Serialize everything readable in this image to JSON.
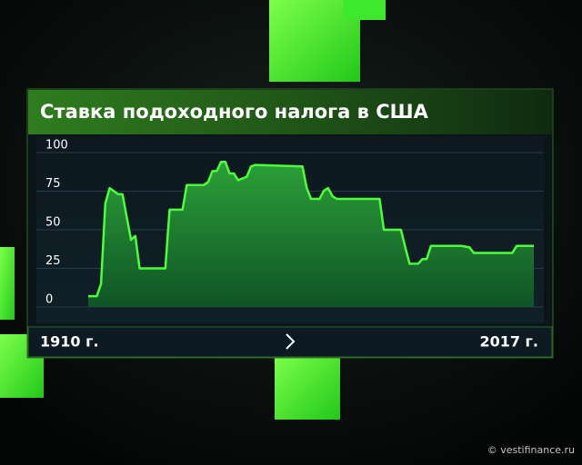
{
  "chart_data": {
    "type": "area",
    "title": "Ставка подоходного налога в США",
    "x": [
      1913,
      1915,
      1916,
      1917,
      1918,
      1920,
      1921,
      1922,
      1923,
      1924,
      1925,
      1931,
      1932,
      1935,
      1936,
      1940,
      1941,
      1942,
      1943,
      1944,
      1945,
      1946,
      1947,
      1948,
      1950,
      1951,
      1952,
      1963,
      1964,
      1965,
      1967,
      1968,
      1969,
      1970,
      1971,
      1981,
      1982,
      1986,
      1987,
      1988,
      1990,
      1991,
      1992,
      1993,
      2000,
      2001,
      2002,
      2003,
      2012,
      2013,
      2017
    ],
    "values": [
      7,
      7,
      15,
      67,
      77,
      73,
      73,
      58,
      43.5,
      46,
      25,
      25,
      63,
      63,
      79,
      79,
      81,
      88,
      88,
      94,
      94,
      86.45,
      86.45,
      82.13,
      84.36,
      91,
      92,
      91,
      77,
      70,
      70,
      75.25,
      77,
      71.75,
      70,
      70,
      50,
      50,
      38.5,
      28,
      28,
      31,
      31,
      39.6,
      39.6,
      39.1,
      38.6,
      35,
      35,
      39.6,
      39.6
    ],
    "color": "#4dff3a",
    "xlim": [
      1913,
      2017
    ],
    "ylim": [
      0,
      100
    ],
    "yticks": [
      0,
      25,
      50,
      75,
      100
    ],
    "grid": true,
    "range_labels": [
      "1910 г.",
      "2017 г."
    ],
    "source": "© vestifinance.ru"
  }
}
